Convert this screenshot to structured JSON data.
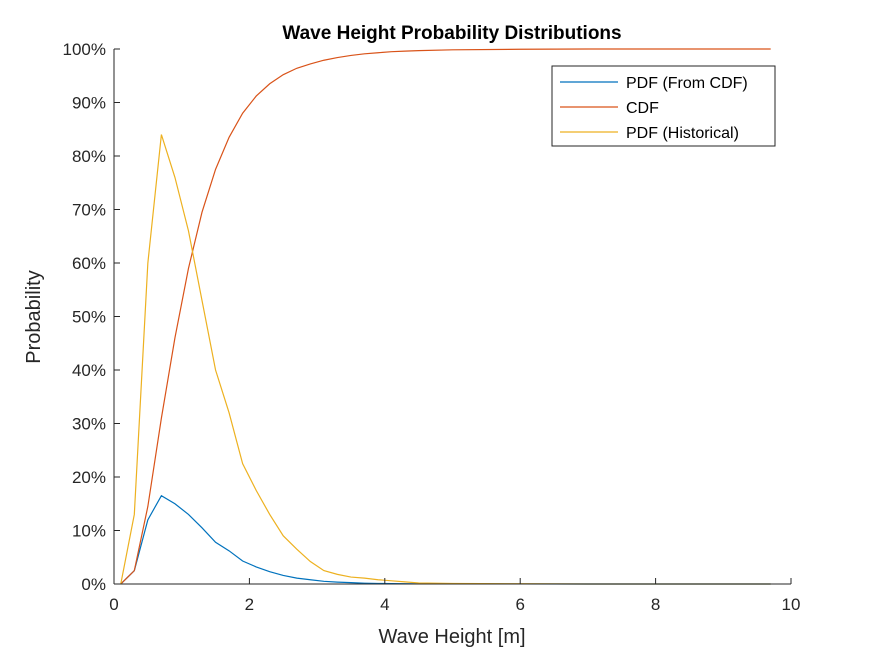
{
  "chart_data": {
    "type": "line",
    "title": "Wave Height Probability Distributions",
    "xlabel": "Wave Height [m]",
    "ylabel": "Probability",
    "xlim": [
      0,
      10
    ],
    "ylim": [
      0,
      100
    ],
    "x_ticks": [
      0,
      2,
      4,
      6,
      8,
      10
    ],
    "x_tick_labels": [
      "0",
      "2",
      "4",
      "6",
      "8",
      "10"
    ],
    "y_ticks": [
      0,
      10,
      20,
      30,
      40,
      50,
      60,
      70,
      80,
      90,
      100
    ],
    "y_tick_labels": [
      "0%",
      "10%",
      "20%",
      "30%",
      "40%",
      "50%",
      "60%",
      "70%",
      "80%",
      "90%",
      "100%"
    ],
    "grid": false,
    "legend_position": "top-right",
    "series": [
      {
        "name": "PDF (From CDF)",
        "color": "#0072BD",
        "x": [
          0.1,
          0.3,
          0.5,
          0.7,
          0.9,
          1.1,
          1.3,
          1.5,
          1.7,
          1.9,
          2.1,
          2.3,
          2.5,
          2.7,
          2.9,
          3.1,
          3.3,
          3.5,
          3.7,
          3.9,
          4.1,
          4.3,
          4.5,
          5.0,
          6.0,
          7.0,
          8.0,
          9.0,
          9.7
        ],
        "y": [
          0,
          2.5,
          12,
          16.5,
          15,
          13,
          10.5,
          7.8,
          6.2,
          4.3,
          3.2,
          2.3,
          1.6,
          1.1,
          0.8,
          0.5,
          0.35,
          0.25,
          0.15,
          0.1,
          0.07,
          0.05,
          0.03,
          0.02,
          0.01,
          0,
          0,
          0,
          0
        ]
      },
      {
        "name": "CDF",
        "color": "#D95319",
        "x": [
          0.1,
          0.3,
          0.5,
          0.7,
          0.9,
          1.1,
          1.3,
          1.5,
          1.7,
          1.9,
          2.1,
          2.3,
          2.5,
          2.7,
          2.9,
          3.1,
          3.3,
          3.5,
          3.7,
          3.9,
          4.1,
          4.3,
          4.5,
          5.0,
          6.0,
          7.0,
          8.0,
          9.0,
          9.7
        ],
        "y": [
          0,
          2.5,
          14.5,
          31,
          46,
          59,
          69.5,
          77.5,
          83.5,
          88,
          91.2,
          93.5,
          95.2,
          96.4,
          97.2,
          97.9,
          98.4,
          98.8,
          99.1,
          99.3,
          99.5,
          99.6,
          99.7,
          99.85,
          99.95,
          100,
          100,
          100,
          100
        ]
      },
      {
        "name": "PDF (Historical)",
        "color": "#EDB120",
        "x": [
          0.1,
          0.3,
          0.5,
          0.7,
          0.9,
          1.1,
          1.3,
          1.5,
          1.7,
          1.9,
          2.1,
          2.3,
          2.5,
          2.7,
          2.9,
          3.1,
          3.3,
          3.5,
          3.7,
          3.9,
          4.1,
          4.3,
          4.5,
          5.0,
          6.0,
          7.0,
          8.0,
          9.0,
          9.7
        ],
        "y": [
          0,
          13,
          60,
          84,
          76,
          66,
          53,
          40,
          32,
          22.5,
          17.5,
          13,
          9,
          6.5,
          4.2,
          2.5,
          1.8,
          1.3,
          1.1,
          0.8,
          0.6,
          0.4,
          0.2,
          0.1,
          0.05,
          0,
          0,
          0,
          0
        ]
      }
    ]
  }
}
